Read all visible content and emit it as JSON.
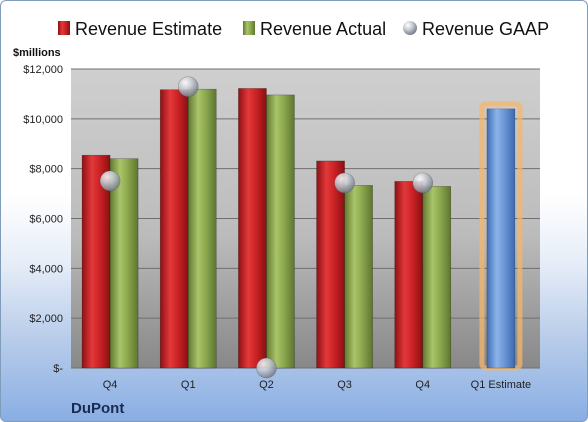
{
  "chart_data": {
    "type": "bar",
    "unit_label": "$millions",
    "company": "DuPont",
    "categories": [
      "Q4",
      "Q1",
      "Q2",
      "Q3",
      "Q4",
      "Q1 Estimate"
    ],
    "series": [
      {
        "name": "Revenue Estimate",
        "color": "#c8191d",
        "kind": "bar",
        "values": [
          8540,
          11170,
          11220,
          8310,
          7490,
          null
        ]
      },
      {
        "name": "Revenue Actual",
        "color": "#8cab4c",
        "kind": "bar",
        "values": [
          8400,
          11190,
          10960,
          7330,
          7290,
          null
        ]
      },
      {
        "name": "Revenue GAAP",
        "color": "#b9bec8",
        "kind": "marker",
        "values": [
          7510,
          11290,
          0,
          7430,
          7430,
          null
        ]
      }
    ],
    "forecast": {
      "category": "Q1 Estimate",
      "value": 10400,
      "color": "#5e8fd2",
      "highlight": "#f6b56a"
    },
    "ylim": [
      0,
      12000
    ],
    "yticks": [
      {
        "value": 0,
        "label": "$-"
      },
      {
        "value": 2000,
        "label": "$2,000"
      },
      {
        "value": 4000,
        "label": "$4,000"
      },
      {
        "value": 6000,
        "label": "$6,000"
      },
      {
        "value": 8000,
        "label": "$8,000"
      },
      {
        "value": 10000,
        "label": "$10,000"
      },
      {
        "value": 12000,
        "label": "$12,000"
      }
    ],
    "grid": true,
    "legend": "top"
  }
}
